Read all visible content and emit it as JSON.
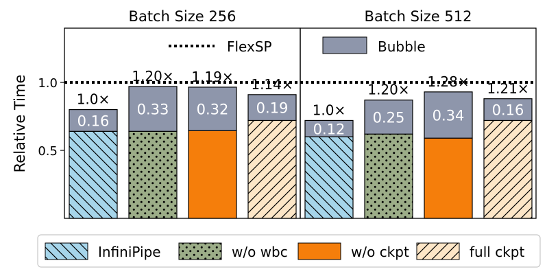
{
  "colors": {
    "infinipipe": "#a6d5ea",
    "wo_wbc": "#9cad88",
    "wo_ckpt": "#f57e0b",
    "full_ckpt": "#fde6c7",
    "bubble": "#8e96ab",
    "axis": "#000000"
  },
  "chart_data": {
    "type": "bar",
    "stacked": true,
    "ylabel": "Relative Time",
    "y_ticks": [
      "0.5",
      "1.0"
    ],
    "ylim": [
      0.0,
      1.4
    ],
    "grid": false,
    "baseline": {
      "name": "FlexSP",
      "value": 1.0,
      "style": "dotted"
    },
    "legend_top": {
      "dotted_line": "FlexSP",
      "box": "Bubble"
    },
    "legend_bottom": [
      "InfiniPipe",
      "w/o wbc",
      "w/o ckpt",
      "full ckpt"
    ],
    "panels": [
      {
        "title": "Batch Size 256",
        "bars": [
          {
            "series": "InfiniPipe",
            "key": "infinipipe",
            "base": 0.64,
            "bubble": 0.16,
            "bubble_label": "0.16",
            "speedup": "1.0×"
          },
          {
            "series": "w/o wbc",
            "key": "wo_wbc",
            "base": 0.64,
            "bubble": 0.33,
            "bubble_label": "0.33",
            "speedup": "1.20×"
          },
          {
            "series": "w/o ckpt",
            "key": "wo_ckpt",
            "base": 0.645,
            "bubble": 0.32,
            "bubble_label": "0.32",
            "speedup": "1.19×"
          },
          {
            "series": "full ckpt",
            "key": "full_ckpt",
            "base": 0.72,
            "bubble": 0.19,
            "bubble_label": "0.19",
            "speedup": "1.14×"
          }
        ]
      },
      {
        "title": "Batch Size 512",
        "bars": [
          {
            "series": "InfiniPipe",
            "key": "infinipipe",
            "base": 0.6,
            "bubble": 0.12,
            "bubble_label": "0.12",
            "speedup": "1.0×"
          },
          {
            "series": "w/o wbc",
            "key": "wo_wbc",
            "base": 0.62,
            "bubble": 0.25,
            "bubble_label": "0.25",
            "speedup": "1.20×"
          },
          {
            "series": "w/o ckpt",
            "key": "wo_ckpt",
            "base": 0.59,
            "bubble": 0.34,
            "bubble_label": "0.34",
            "speedup": "1.28×"
          },
          {
            "series": "full ckpt",
            "key": "full_ckpt",
            "base": 0.72,
            "bubble": 0.16,
            "bubble_label": "0.16",
            "speedup": "1.21×"
          }
        ]
      }
    ]
  }
}
